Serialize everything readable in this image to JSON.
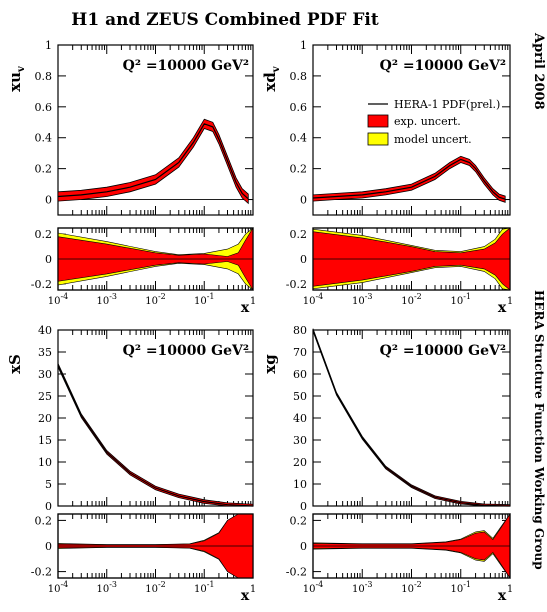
{
  "figure": {
    "title": "H1 and ZEUS Combined PDF Fit",
    "date_note": "April 2008",
    "group_note": "HERA Structure Function Working Group",
    "q2_label": "Q² =10000 GeV²",
    "x_axis_label": "x"
  },
  "legend": {
    "placement": "top-right of xdv panel",
    "entries": [
      {
        "label": "HERA-1 PDF(prel.)",
        "type": "line",
        "color": "#000000"
      },
      {
        "label": "exp. uncert.",
        "type": "box",
        "color": "#ff0000"
      },
      {
        "label": "model uncert.",
        "type": "box",
        "color": "#ffff00"
      }
    ]
  },
  "colors": {
    "exp": "#ff0000",
    "model": "#ffff00",
    "line": "#000000"
  },
  "chart_data": [
    {
      "type": "line",
      "ylabel": "xuv",
      "xscale": "log",
      "xlim": [
        0.0001,
        1
      ],
      "ylim": [
        -0.1,
        1
      ],
      "yticks": [
        0,
        0.2,
        0.4,
        0.6,
        0.8,
        1
      ],
      "x": [
        0.0001,
        0.0003,
        0.001,
        0.003,
        0.01,
        0.03,
        0.06,
        0.1,
        0.15,
        0.2,
        0.3,
        0.45,
        0.6,
        0.8
      ],
      "series": [
        {
          "values": [
            0.02,
            0.03,
            0.05,
            0.08,
            0.13,
            0.24,
            0.37,
            0.49,
            0.47,
            0.39,
            0.25,
            0.11,
            0.04,
            0.005
          ],
          "band": 0.03
        }
      ],
      "ratio": {
        "ylim": [
          -0.25,
          0.25
        ],
        "yticks": [
          -0.2,
          0,
          0.2
        ],
        "x": [
          0.0001,
          0.001,
          0.01,
          0.03,
          0.1,
          0.3,
          0.5,
          0.7,
          1
        ],
        "exp": [
          0.18,
          0.12,
          0.05,
          0.03,
          0.04,
          0.02,
          0.05,
          0.15,
          0.25
        ],
        "model": [
          0.21,
          0.14,
          0.06,
          0.035,
          0.045,
          0.08,
          0.12,
          0.2,
          0.25
        ]
      }
    },
    {
      "type": "line",
      "ylabel": "xdv",
      "xscale": "log",
      "xlim": [
        0.0001,
        1
      ],
      "ylim": [
        -0.1,
        1
      ],
      "yticks": [
        0,
        0.2,
        0.4,
        0.6,
        0.8,
        1
      ],
      "x": [
        0.0001,
        0.0003,
        0.001,
        0.003,
        0.01,
        0.03,
        0.06,
        0.1,
        0.15,
        0.2,
        0.3,
        0.45,
        0.6,
        0.8
      ],
      "series": [
        {
          "values": [
            0.01,
            0.02,
            0.03,
            0.05,
            0.08,
            0.15,
            0.22,
            0.26,
            0.24,
            0.2,
            0.12,
            0.05,
            0.015,
            0.002
          ],
          "band": 0.02
        }
      ],
      "ratio": {
        "ylim": [
          -0.25,
          0.25
        ],
        "yticks": [
          -0.2,
          0,
          0.2
        ],
        "x": [
          0.0001,
          0.001,
          0.01,
          0.03,
          0.1,
          0.3,
          0.5,
          0.7,
          1
        ],
        "exp": [
          0.22,
          0.17,
          0.1,
          0.06,
          0.05,
          0.08,
          0.13,
          0.2,
          0.25
        ],
        "model": [
          0.24,
          0.19,
          0.11,
          0.07,
          0.06,
          0.1,
          0.16,
          0.24,
          0.25
        ]
      }
    },
    {
      "type": "line",
      "ylabel": "xS",
      "xscale": "log",
      "xlim": [
        0.0001,
        1
      ],
      "ylim": [
        0,
        40
      ],
      "yticks": [
        0,
        5,
        10,
        15,
        20,
        25,
        30,
        35,
        40
      ],
      "x": [
        0.0001,
        0.0003,
        0.001,
        0.003,
        0.01,
        0.03,
        0.1,
        0.3,
        1
      ],
      "series": [
        {
          "values": [
            32,
            20.5,
            12.2,
            7.5,
            4.1,
            2.3,
            1,
            0.3,
            0
          ],
          "band": 0.4
        }
      ],
      "ratio": {
        "ylim": [
          -0.25,
          0.25
        ],
        "yticks": [
          -0.2,
          0,
          0.2
        ],
        "x": [
          0.0001,
          0.001,
          0.01,
          0.05,
          0.1,
          0.2,
          0.3,
          0.5,
          0.7,
          1
        ],
        "exp": [
          0.015,
          0.01,
          0.01,
          0.015,
          0.04,
          0.1,
          0.2,
          0.25,
          0.25,
          0.25
        ],
        "model": [
          0.02,
          0.012,
          0.012,
          0.017,
          0.045,
          0.105,
          0.2,
          0.25,
          0.25,
          0.25
        ]
      }
    },
    {
      "type": "line",
      "ylabel": "xg",
      "xscale": "log",
      "xlim": [
        0.0001,
        1
      ],
      "ylim": [
        0,
        80
      ],
      "yticks": [
        0,
        10,
        20,
        30,
        40,
        50,
        60,
        70,
        80
      ],
      "x": [
        0.0001,
        0.0003,
        0.001,
        0.003,
        0.01,
        0.03,
        0.1,
        0.3,
        1
      ],
      "series": [
        {
          "values": [
            80,
            51,
            31,
            17.5,
            9,
            4,
            1.5,
            0.3,
            0
          ],
          "band": 0.6
        }
      ],
      "ratio": {
        "ylim": [
          -0.25,
          0.25
        ],
        "yticks": [
          -0.2,
          0,
          0.2
        ],
        "x": [
          0.0001,
          0.001,
          0.01,
          0.05,
          0.1,
          0.2,
          0.3,
          0.45,
          0.6,
          1
        ],
        "exp": [
          0.02,
          0.015,
          0.015,
          0.03,
          0.05,
          0.1,
          0.11,
          0.05,
          0.12,
          0.25
        ],
        "model": [
          0.025,
          0.018,
          0.018,
          0.033,
          0.055,
          0.11,
          0.12,
          0.06,
          0.13,
          0.25
        ]
      }
    }
  ]
}
